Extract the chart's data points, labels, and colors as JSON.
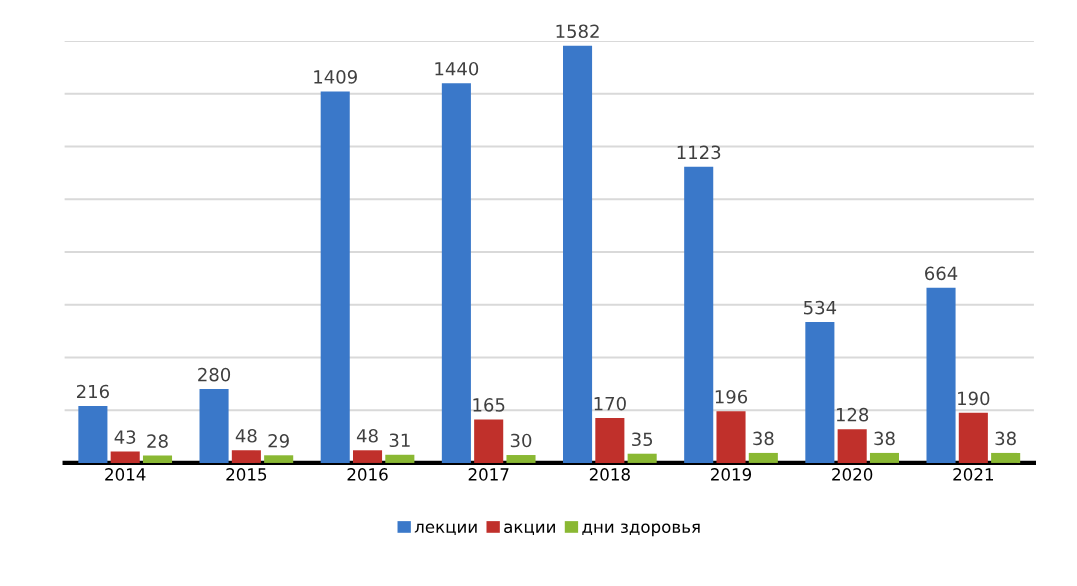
{
  "chart_data": {
    "type": "bar",
    "categories": [
      "2014",
      "2015",
      "2016",
      "2017",
      "2018",
      "2019",
      "2020",
      "2021"
    ],
    "series": [
      {
        "name": "лекции",
        "color": "#3a78c9",
        "values": [
          216,
          280,
          1409,
          1440,
          1582,
          1123,
          534,
          664
        ]
      },
      {
        "name": "акции",
        "color": "#c0302b",
        "values": [
          43,
          48,
          48,
          165,
          170,
          196,
          128,
          190
        ]
      },
      {
        "name": "дни здоровья",
        "color": "#8ab833",
        "values": [
          28,
          29,
          31,
          30,
          35,
          38,
          38,
          38
        ]
      }
    ],
    "ylim": [
      0,
      1600
    ],
    "yticks": [
      {
        "value": 0,
        "label": null
      },
      {
        "value": 200,
        "label": null
      },
      {
        "value": 400,
        "label": null
      },
      {
        "value": 600,
        "label": null
      },
      {
        "value": 800,
        "label": null
      },
      {
        "value": 1000,
        "label": null
      },
      {
        "value": 1200,
        "label": null
      },
      {
        "value": 1400,
        "label": null
      },
      {
        "value": 1600,
        "label": null
      }
    ],
    "tick_labels": "x",
    "grid": "y",
    "legend": "bottom",
    "data_labels": true
  }
}
